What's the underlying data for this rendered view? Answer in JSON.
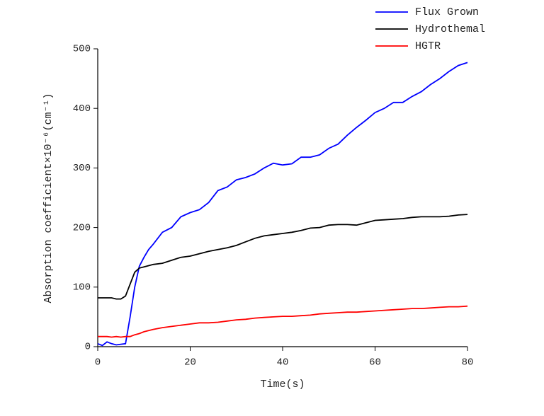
{
  "chart_data": {
    "type": "line",
    "xlabel": "Time(s)",
    "ylabel": "Absorption coefficient×10⁻⁶(cm⁻¹)",
    "x": [
      0,
      1,
      2,
      3,
      4,
      5,
      6,
      7,
      8,
      9,
      10,
      11,
      12,
      14,
      16,
      18,
      20,
      22,
      24,
      26,
      28,
      30,
      32,
      34,
      36,
      38,
      40,
      42,
      44,
      46,
      48,
      50,
      52,
      54,
      56,
      58,
      60,
      62,
      64,
      66,
      68,
      70,
      72,
      74,
      76,
      78,
      80
    ],
    "series": [
      {
        "name": "Flux Grown",
        "color": "#0000ff",
        "values": [
          5,
          2,
          8,
          5,
          3,
          4,
          5,
          50,
          100,
          135,
          150,
          163,
          172,
          192,
          200,
          218,
          225,
          230,
          242,
          262,
          268,
          280,
          284,
          290,
          300,
          308,
          305,
          307,
          318,
          318,
          322,
          333,
          340,
          355,
          368,
          380,
          393,
          400,
          410,
          410,
          420,
          428,
          440,
          450,
          462,
          472,
          477
        ]
      },
      {
        "name": "Hydrothemal",
        "color": "#000000",
        "values": [
          82,
          82,
          82,
          82,
          80,
          80,
          85,
          105,
          125,
          132,
          134,
          136,
          138,
          140,
          145,
          150,
          152,
          156,
          160,
          163,
          166,
          170,
          176,
          182,
          186,
          188,
          190,
          192,
          195,
          199,
          200,
          204,
          205,
          205,
          204,
          208,
          212,
          213,
          214,
          215,
          217,
          218,
          218,
          218,
          219,
          221,
          222
        ]
      },
      {
        "name": "HGTR",
        "color": "#ff0000",
        "values": [
          17,
          17,
          17,
          16,
          17,
          16,
          17,
          17,
          20,
          22,
          25,
          27,
          29,
          32,
          34,
          36,
          38,
          40,
          40,
          41,
          43,
          45,
          46,
          48,
          49,
          50,
          51,
          51,
          52,
          53,
          55,
          56,
          57,
          58,
          58,
          59,
          60,
          61,
          62,
          63,
          64,
          64,
          65,
          66,
          67,
          67,
          68
        ]
      }
    ],
    "xlim": [
      0,
      80
    ],
    "xticks": [
      0,
      20,
      40,
      60,
      80
    ],
    "ylim": [
      0,
      500
    ],
    "yticks": [
      0,
      100,
      200,
      300,
      400,
      500
    ],
    "legend": "top-right"
  }
}
